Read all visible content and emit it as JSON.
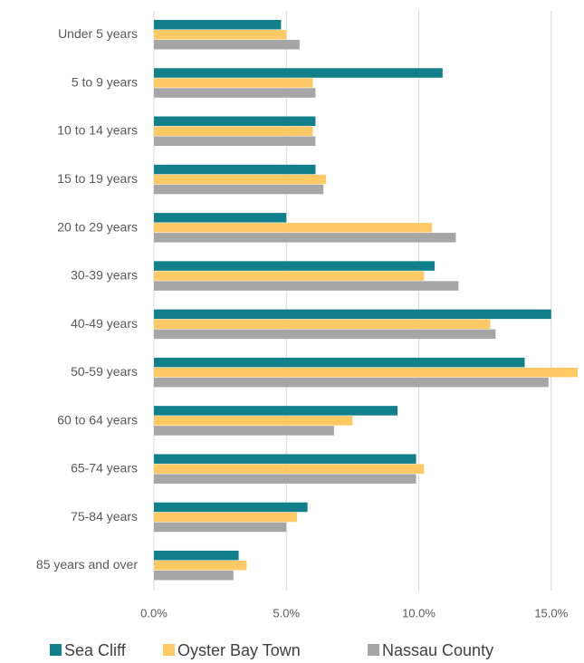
{
  "chart_data": {
    "type": "bar",
    "orientation": "horizontal",
    "categories": [
      "Under 5 years",
      "5 to 9 years",
      "10 to 14 years",
      "15 to 19 years",
      "20 to 29 years",
      "30-39 years",
      "40-49 years",
      "50-59 years",
      "60 to 64 years",
      "65-74 years",
      "75-84 years",
      "85 years and over"
    ],
    "series": [
      {
        "name": "Sea Cliff",
        "color": "#12808a",
        "values": [
          4.8,
          10.9,
          6.1,
          6.1,
          5.0,
          10.6,
          15.0,
          14.0,
          9.2,
          9.9,
          5.8,
          3.2
        ]
      },
      {
        "name": "Oyster Bay Town",
        "color": "#ffc966",
        "values": [
          5.0,
          6.0,
          6.0,
          6.5,
          10.5,
          10.2,
          12.7,
          16.0,
          7.5,
          10.2,
          5.4,
          3.5
        ]
      },
      {
        "name": "Nassau County",
        "color": "#a6a6a6",
        "values": [
          5.5,
          6.1,
          6.1,
          6.4,
          11.4,
          11.5,
          12.9,
          14.9,
          6.8,
          9.9,
          5.0,
          3.0
        ]
      }
    ],
    "xlim": [
      0,
      16
    ],
    "xticks": [
      {
        "value": 0,
        "label": "0.0%"
      },
      {
        "value": 5,
        "label": "5.0%"
      },
      {
        "value": 10,
        "label": "10.0%"
      },
      {
        "value": 15,
        "label": "15.0%"
      }
    ],
    "grid": true,
    "legend": "bottom"
  }
}
